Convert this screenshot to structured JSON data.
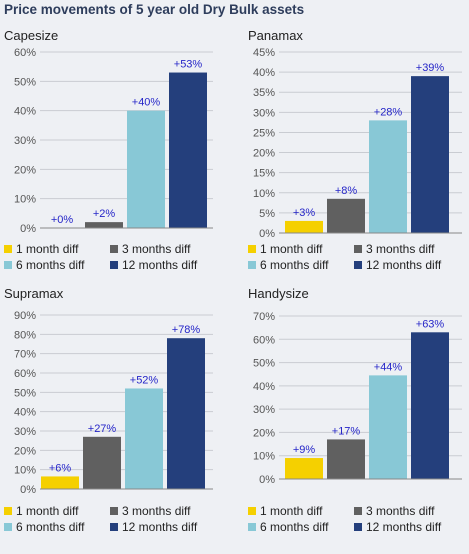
{
  "title": "Price movements of 5 year old Dry Bulk assets",
  "colors": {
    "1 month diff": "#f5d000",
    "3 months diff": "#606060",
    "6 months diff": "#88c8d6",
    "12 months diff": "#243f7c",
    "label": "#2525c8"
  },
  "legend": [
    "1 month diff",
    "3 months diff",
    "6 months diff",
    "12 months diff"
  ],
  "chart_data": [
    {
      "type": "bar",
      "title": "Capesize",
      "categories": [
        "1 month diff",
        "3 months diff",
        "6 months diff",
        "12 months diff"
      ],
      "values": [
        0,
        2,
        40,
        53
      ],
      "data_labels": [
        "+0%",
        "+2%",
        "+40%",
        "+53%"
      ],
      "yticks": [
        "0%",
        "10%",
        "20%",
        "30%",
        "40%",
        "50%",
        "60%"
      ],
      "ylim": [
        0,
        60
      ],
      "grid": true,
      "legend_position": "bottom"
    },
    {
      "type": "bar",
      "title": "Panamax",
      "categories": [
        "1 month diff",
        "3 months diff",
        "6 months diff",
        "12 months diff"
      ],
      "values": [
        3,
        8.5,
        28,
        39
      ],
      "data_labels": [
        "+3%",
        "+8%",
        "+28%",
        "+39%"
      ],
      "yticks": [
        "0%",
        "5%",
        "10%",
        "15%",
        "20%",
        "25%",
        "30%",
        "35%",
        "40%",
        "45%"
      ],
      "ylim": [
        0,
        45
      ],
      "grid": true,
      "legend_position": "bottom"
    },
    {
      "type": "bar",
      "title": "Supramax",
      "categories": [
        "1 month diff",
        "3 months diff",
        "6 months diff",
        "12 months diff"
      ],
      "values": [
        6.5,
        27,
        52,
        78
      ],
      "data_labels": [
        "+6%",
        "+27%",
        "+52%",
        "+78%"
      ],
      "yticks": [
        "0%",
        "10%",
        "20%",
        "30%",
        "40%",
        "50%",
        "60%",
        "70%",
        "80%",
        "90%"
      ],
      "ylim": [
        0,
        90
      ],
      "grid": true,
      "legend_position": "bottom"
    },
    {
      "type": "bar",
      "title": "Handysize",
      "categories": [
        "1 month diff",
        "3 months diff",
        "6 months diff",
        "12 months diff"
      ],
      "values": [
        9,
        17,
        44.5,
        63
      ],
      "data_labels": [
        "+9%",
        "+17%",
        "+44%",
        "+63%"
      ],
      "yticks": [
        "0%",
        "10%",
        "20%",
        "30%",
        "40%",
        "50%",
        "60%",
        "70%"
      ],
      "ylim": [
        0,
        70
      ],
      "grid": true,
      "legend_position": "bottom"
    }
  ]
}
